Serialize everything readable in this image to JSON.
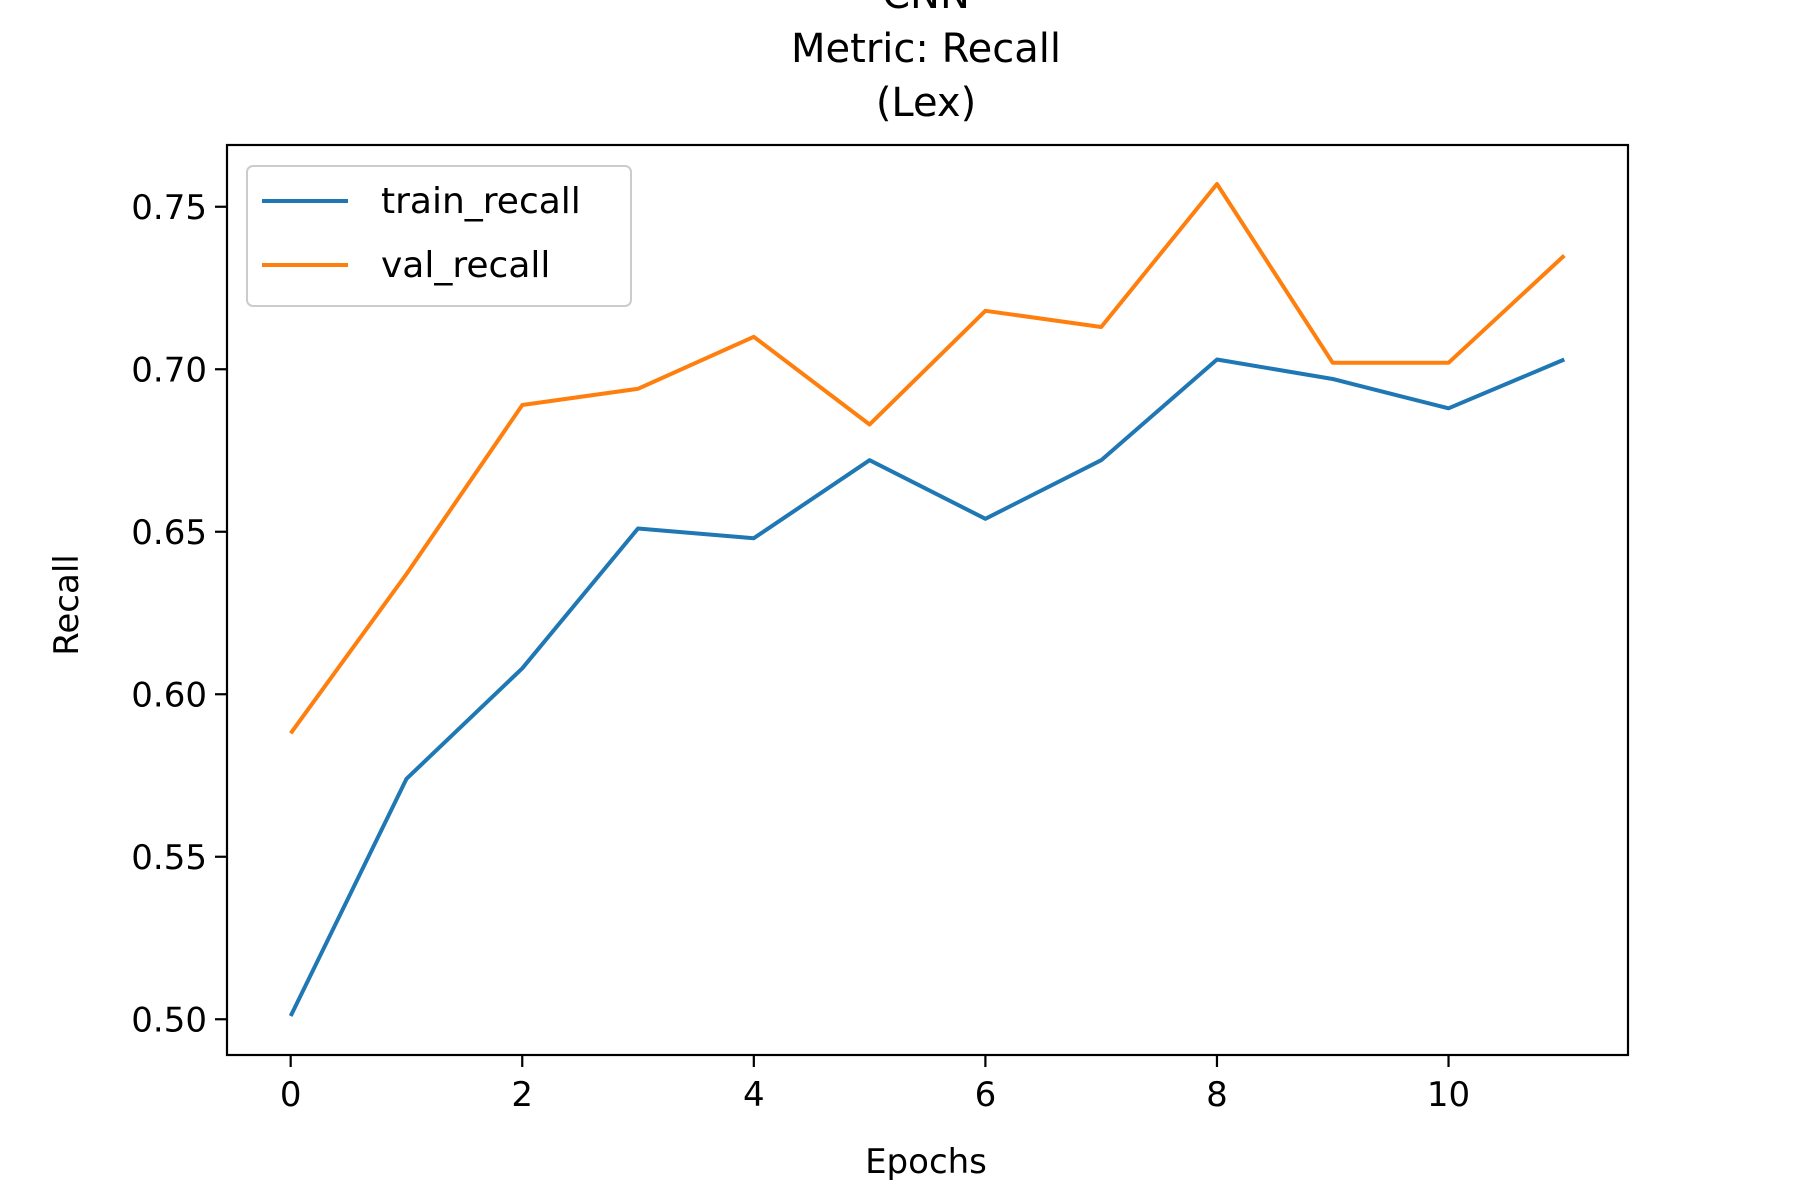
{
  "chart_data": {
    "type": "line",
    "title_lines": [
      "CNN",
      "Metric: Recall",
      "(Lex)"
    ],
    "xlabel": "Epochs",
    "ylabel": "Recall",
    "x": [
      0,
      1,
      2,
      3,
      4,
      5,
      6,
      7,
      8,
      9,
      10,
      11
    ],
    "xlim": [
      -0.55,
      11.55
    ],
    "ylim": [
      0.489,
      0.769
    ],
    "x_ticks": [
      0,
      2,
      4,
      6,
      8,
      10
    ],
    "x_tick_labels": [
      "0",
      "2",
      "4",
      "6",
      "8",
      "10"
    ],
    "y_ticks": [
      0.5,
      0.55,
      0.6,
      0.65,
      0.7,
      0.75
    ],
    "y_tick_labels": [
      "0.50",
      "0.55",
      "0.60",
      "0.65",
      "0.70",
      "0.75"
    ],
    "grid": false,
    "legend_position": "top-left",
    "series": [
      {
        "name": "train_recall",
        "color": "#1f77b4",
        "values": [
          0.501,
          0.574,
          0.608,
          0.651,
          0.648,
          0.672,
          0.654,
          0.672,
          0.703,
          0.697,
          0.688,
          0.703
        ]
      },
      {
        "name": "val_recall",
        "color": "#ff7f0e",
        "values": [
          0.588,
          0.637,
          0.689,
          0.694,
          0.71,
          0.683,
          0.718,
          0.713,
          0.757,
          0.702,
          0.702,
          0.735
        ]
      }
    ]
  }
}
